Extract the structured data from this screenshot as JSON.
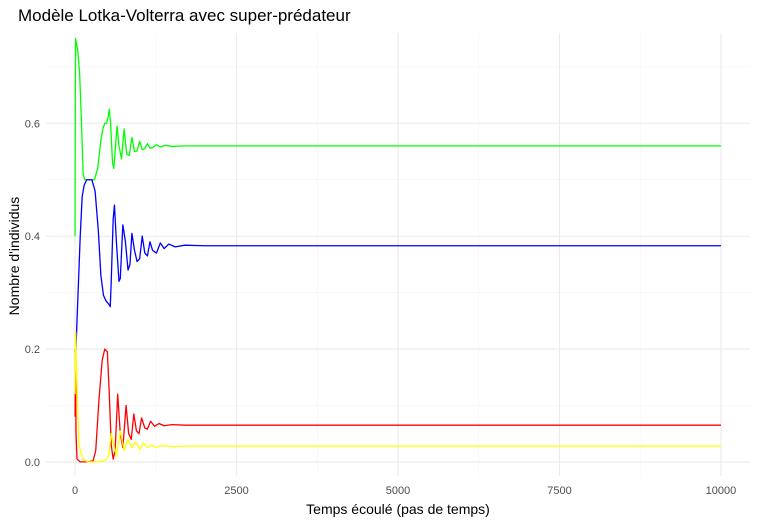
{
  "chart_data": {
    "type": "line",
    "title": "Modèle Lotka-Volterra avec super-prédateur",
    "xlabel": "Temps écoulé (pas de temps)",
    "ylabel": "Nombre d'individus",
    "xlim": [
      -450,
      10450
    ],
    "ylim": [
      -0.025,
      0.76
    ],
    "x_ticks": [
      0,
      2500,
      5000,
      7500,
      10000
    ],
    "x_tick_labels": [
      "0",
      "2500",
      "5000",
      "7500",
      "10000"
    ],
    "y_ticks": [
      0.0,
      0.2,
      0.4,
      0.6
    ],
    "y_tick_labels": [
      "0.0",
      "0.2",
      "0.4",
      "0.6"
    ],
    "grid": true,
    "legend": "none",
    "series": [
      {
        "color": "#00ff00",
        "points": [
          [
            0,
            0.4
          ],
          [
            1,
            0.52
          ],
          [
            8,
            0.75
          ],
          [
            40,
            0.73
          ],
          [
            70,
            0.69
          ],
          [
            100,
            0.6
          ],
          [
            125,
            0.51
          ],
          [
            150,
            0.5
          ],
          [
            200,
            0.5
          ],
          [
            300,
            0.5
          ],
          [
            350,
            0.52
          ],
          [
            400,
            0.57
          ],
          [
            430,
            0.59
          ],
          [
            460,
            0.6
          ],
          [
            490,
            0.6
          ],
          [
            510,
            0.61
          ],
          [
            530,
            0.625
          ],
          [
            550,
            0.6
          ],
          [
            580,
            0.53
          ],
          [
            600,
            0.52
          ],
          [
            620,
            0.55
          ],
          [
            650,
            0.595
          ],
          [
            680,
            0.56
          ],
          [
            720,
            0.537
          ],
          [
            760,
            0.59
          ],
          [
            800,
            0.545
          ],
          [
            840,
            0.543
          ],
          [
            880,
            0.575
          ],
          [
            920,
            0.55
          ],
          [
            960,
            0.551
          ],
          [
            1000,
            0.568
          ],
          [
            1040,
            0.553
          ],
          [
            1080,
            0.555
          ],
          [
            1120,
            0.564
          ],
          [
            1160,
            0.556
          ],
          [
            1200,
            0.557
          ],
          [
            1260,
            0.562
          ],
          [
            1320,
            0.558
          ],
          [
            1400,
            0.561
          ],
          [
            1500,
            0.559
          ],
          [
            1700,
            0.56
          ],
          [
            2000,
            0.56
          ],
          [
            10000,
            0.56
          ]
        ]
      },
      {
        "color": "#0000ff",
        "points": [
          [
            0,
            0.2
          ],
          [
            5,
            0.17
          ],
          [
            30,
            0.25
          ],
          [
            80,
            0.4
          ],
          [
            110,
            0.47
          ],
          [
            140,
            0.49
          ],
          [
            180,
            0.5
          ],
          [
            260,
            0.5
          ],
          [
            310,
            0.48
          ],
          [
            360,
            0.41
          ],
          [
            400,
            0.33
          ],
          [
            440,
            0.295
          ],
          [
            480,
            0.285
          ],
          [
            520,
            0.28
          ],
          [
            545,
            0.275
          ],
          [
            560,
            0.32
          ],
          [
            590,
            0.43
          ],
          [
            610,
            0.455
          ],
          [
            640,
            0.39
          ],
          [
            680,
            0.32
          ],
          [
            700,
            0.325
          ],
          [
            740,
            0.42
          ],
          [
            780,
            0.39
          ],
          [
            820,
            0.34
          ],
          [
            850,
            0.35
          ],
          [
            880,
            0.405
          ],
          [
            920,
            0.375
          ],
          [
            960,
            0.355
          ],
          [
            1000,
            0.36
          ],
          [
            1040,
            0.4
          ],
          [
            1080,
            0.37
          ],
          [
            1120,
            0.365
          ],
          [
            1160,
            0.39
          ],
          [
            1200,
            0.375
          ],
          [
            1260,
            0.37
          ],
          [
            1320,
            0.388
          ],
          [
            1380,
            0.378
          ],
          [
            1450,
            0.386
          ],
          [
            1550,
            0.381
          ],
          [
            1700,
            0.384
          ],
          [
            2000,
            0.383
          ],
          [
            10000,
            0.383
          ]
        ]
      },
      {
        "color": "#ff0000",
        "points": [
          [
            0,
            0.08
          ],
          [
            5,
            0.2
          ],
          [
            15,
            0.05
          ],
          [
            30,
            0.005
          ],
          [
            80,
            0.0
          ],
          [
            200,
            0.0
          ],
          [
            280,
            0.002
          ],
          [
            320,
            0.02
          ],
          [
            370,
            0.11
          ],
          [
            420,
            0.18
          ],
          [
            460,
            0.2
          ],
          [
            500,
            0.195
          ],
          [
            530,
            0.12
          ],
          [
            560,
            0.03
          ],
          [
            590,
            0.005
          ],
          [
            620,
            0.02
          ],
          [
            660,
            0.12
          ],
          [
            700,
            0.05
          ],
          [
            740,
            0.025
          ],
          [
            790,
            0.1
          ],
          [
            830,
            0.05
          ],
          [
            870,
            0.04
          ],
          [
            910,
            0.085
          ],
          [
            950,
            0.055
          ],
          [
            990,
            0.05
          ],
          [
            1030,
            0.078
          ],
          [
            1080,
            0.06
          ],
          [
            1120,
            0.058
          ],
          [
            1170,
            0.072
          ],
          [
            1230,
            0.063
          ],
          [
            1300,
            0.068
          ],
          [
            1380,
            0.064
          ],
          [
            1500,
            0.066
          ],
          [
            1700,
            0.065
          ],
          [
            2000,
            0.065
          ],
          [
            10000,
            0.065
          ]
        ]
      },
      {
        "color": "#ffff00",
        "points": [
          [
            0,
            0.12
          ],
          [
            4,
            0.22
          ],
          [
            10,
            0.23
          ],
          [
            20,
            0.17
          ],
          [
            60,
            0.03
          ],
          [
            120,
            0.005
          ],
          [
            200,
            0.0
          ],
          [
            380,
            0.0
          ],
          [
            460,
            0.002
          ],
          [
            520,
            0.01
          ],
          [
            560,
            0.05
          ],
          [
            600,
            0.03
          ],
          [
            640,
            0.01
          ],
          [
            700,
            0.055
          ],
          [
            760,
            0.02
          ],
          [
            820,
            0.04
          ],
          [
            880,
            0.025
          ],
          [
            940,
            0.035
          ],
          [
            1000,
            0.022
          ],
          [
            1060,
            0.033
          ],
          [
            1120,
            0.025
          ],
          [
            1180,
            0.03
          ],
          [
            1260,
            0.026
          ],
          [
            1360,
            0.029
          ],
          [
            1500,
            0.027
          ],
          [
            1700,
            0.028
          ],
          [
            10000,
            0.028
          ]
        ]
      }
    ]
  }
}
